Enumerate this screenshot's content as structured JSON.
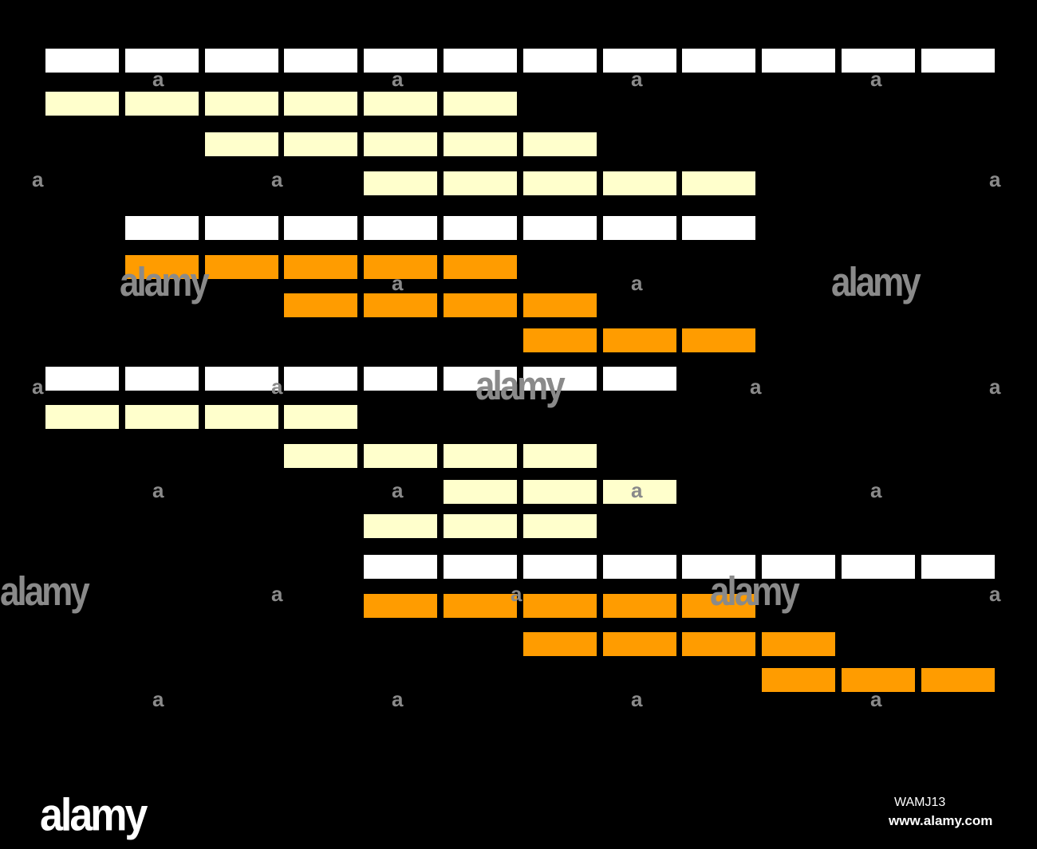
{
  "colors": {
    "background": "#000000",
    "white": "#ffffff",
    "pale": "#ffffcc",
    "orange": "#ff9c00",
    "watermark": "#8a8a8a"
  },
  "rows": [
    {
      "color": "white",
      "start": 0,
      "count": 12
    },
    {
      "color": "pale",
      "start": 0,
      "count": 6
    },
    {
      "color": "pale",
      "start": 2,
      "count": 5
    },
    {
      "color": "pale",
      "start": 4,
      "count": 5
    },
    {
      "color": "white",
      "start": 1,
      "count": 8
    },
    {
      "color": "orange",
      "start": 1,
      "count": 5
    },
    {
      "color": "orange",
      "start": 3,
      "count": 4
    },
    {
      "color": "orange",
      "start": 6,
      "count": 3
    },
    {
      "color": "white",
      "start": 0,
      "count": 8
    },
    {
      "color": "pale",
      "start": 0,
      "count": 4
    },
    {
      "color": "pale",
      "start": 3,
      "count": 4
    },
    {
      "color": "pale",
      "start": 5,
      "count": 3
    },
    {
      "color": "pale",
      "start": 4,
      "count": 3
    },
    {
      "color": "white",
      "start": 4,
      "count": 8
    },
    {
      "color": "orange",
      "start": 4,
      "count": 5
    },
    {
      "color": "orange",
      "start": 6,
      "count": 4
    },
    {
      "color": "orange",
      "start": 9,
      "count": 3
    }
  ],
  "watermark": {
    "word": "alamy",
    "letter": "a"
  },
  "footer": {
    "logo": "alamy",
    "image_id": "WAMJ13",
    "url": "www.alamy.com"
  }
}
